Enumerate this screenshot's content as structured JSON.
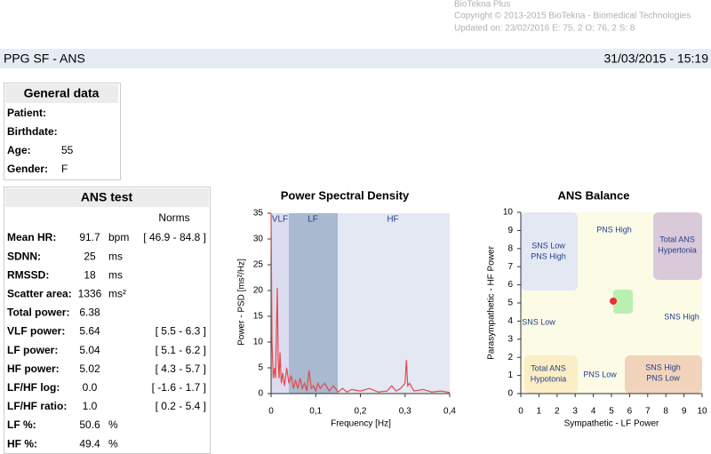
{
  "header": {
    "lines": [
      "BioTekna Plus",
      "Copyright © 2013-2015 BioTekna - Biomedical Technologies",
      "Updated on: 23/02/2016 E: 75, 2 O: 76, 2 S: 8"
    ]
  },
  "bar": {
    "title": "PPG SF - ANS",
    "date": "31/03/2015 - 15:19"
  },
  "general": {
    "title": "General data",
    "rows": [
      [
        "Patient:",
        ""
      ],
      [
        "Birthdate:",
        ""
      ],
      [
        "Age:",
        "55"
      ],
      [
        "Gender:",
        "F"
      ]
    ]
  },
  "ans_test": {
    "title": "ANS test",
    "norms_header": "Norms",
    "rows": [
      [
        "Mean HR:",
        "91.7",
        "bpm",
        "[ 46.9 - 84.8 ]"
      ],
      [
        "SDNN:",
        "25",
        "ms",
        ""
      ],
      [
        "RMSSD:",
        "18",
        "ms",
        ""
      ],
      [
        "Scatter area:",
        "1336",
        "ms²",
        ""
      ],
      [
        "Total power:",
        "6.38",
        "",
        ""
      ],
      [
        "VLF power:",
        "5.64",
        "",
        "[ 5.5 - 6.3 ]"
      ],
      [
        "LF power:",
        "5.04",
        "",
        "[ 5.1 - 6.2 ]"
      ],
      [
        "HF power:",
        "5.02",
        "",
        "[ 4.3 - 5.7 ]"
      ],
      [
        "LF/HF log:",
        "0.0",
        "",
        "[ -1.6 - 1.7 ]"
      ],
      [
        "LF/HF ratio:",
        "1.0",
        "",
        "[ 0.2 - 5.4 ]"
      ],
      [
        "LF %:",
        "50.6",
        "%",
        ""
      ],
      [
        "HF %:",
        "49.4",
        "%",
        ""
      ]
    ]
  },
  "chart_data": [
    {
      "type": "line",
      "title": "Power Spectral Density",
      "x_label": "Frequency [Hz]",
      "y_label": "Power - PSD [ms²/Hz]",
      "band_labels": [
        "VLF",
        "LF",
        "HF"
      ],
      "xlim": [
        0,
        0.4
      ],
      "ylim": [
        0,
        35
      ],
      "xticks": [
        0,
        {
          "value": 0.1,
          "label": "0,1"
        },
        {
          "value": 0.2,
          "label": "0,2"
        },
        {
          "value": 0.3,
          "label": "0,3"
        },
        {
          "value": 0.4,
          "label": "0,4"
        }
      ],
      "yticks": [
        0,
        5,
        10,
        15,
        20,
        25,
        30,
        35
      ],
      "x": [
        0,
        0.002,
        0.005,
        0.008,
        0.01,
        0.012,
        0.014,
        0.016,
        0.018,
        0.02,
        0.023,
        0.026,
        0.03,
        0.035,
        0.04,
        0.045,
        0.05,
        0.055,
        0.06,
        0.065,
        0.07,
        0.075,
        0.08,
        0.085,
        0.09,
        0.095,
        0.1,
        0.105,
        0.11,
        0.12,
        0.13,
        0.14,
        0.15,
        0.16,
        0.17,
        0.18,
        0.2,
        0.22,
        0.24,
        0.26,
        0.27,
        0.28,
        0.29,
        0.3,
        0.303,
        0.306,
        0.31,
        0.32,
        0.34,
        0.36,
        0.38,
        0.4
      ],
      "series": [
        {
          "color": "#e84848",
          "values": [
            35,
            10,
            3,
            5,
            3,
            12,
            20.5,
            6,
            3,
            8,
            2,
            4,
            1.5,
            5,
            2,
            3.5,
            1,
            2.5,
            1,
            3,
            1,
            2,
            0.5,
            4.5,
            1,
            1.5,
            0.5,
            2,
            1,
            2,
            0.5,
            1.5,
            0.3,
            1,
            0.3,
            0.8,
            0.5,
            1,
            0.3,
            0.5,
            1.5,
            0.5,
            1,
            2,
            6.5,
            1.5,
            2,
            0.5,
            0.8,
            0.3,
            0.5,
            0.2
          ]
        }
      ]
    },
    {
      "type": "scatter",
      "title": "ANS Balance",
      "x_label": "Sympathetic - LF Power",
      "y_label": "Parasympathetic - HF Power",
      "regions": [
        [
          "SNS Low",
          "PNS High"
        ],
        [
          "Total ANS",
          "Hypertonia"
        ],
        [
          "Total ANS",
          "Hypotonia"
        ],
        [
          "SNS High",
          "PNS Low"
        ]
      ],
      "labels": [
        "PNS High",
        "SNS Low",
        "SNS High",
        "PNS Low"
      ],
      "xlim": [
        0,
        10
      ],
      "ylim": [
        0,
        10
      ],
      "xticks": [
        0,
        1,
        2,
        3,
        4,
        5,
        6,
        7,
        8,
        9,
        10
      ],
      "yticks": [
        0,
        1,
        2,
        3,
        4,
        5,
        6,
        7,
        8,
        9,
        10
      ],
      "series": [
        {
          "color": "#e83030",
          "x": [
            5.1
          ],
          "values": [
            5.1
          ]
        }
      ]
    }
  ]
}
